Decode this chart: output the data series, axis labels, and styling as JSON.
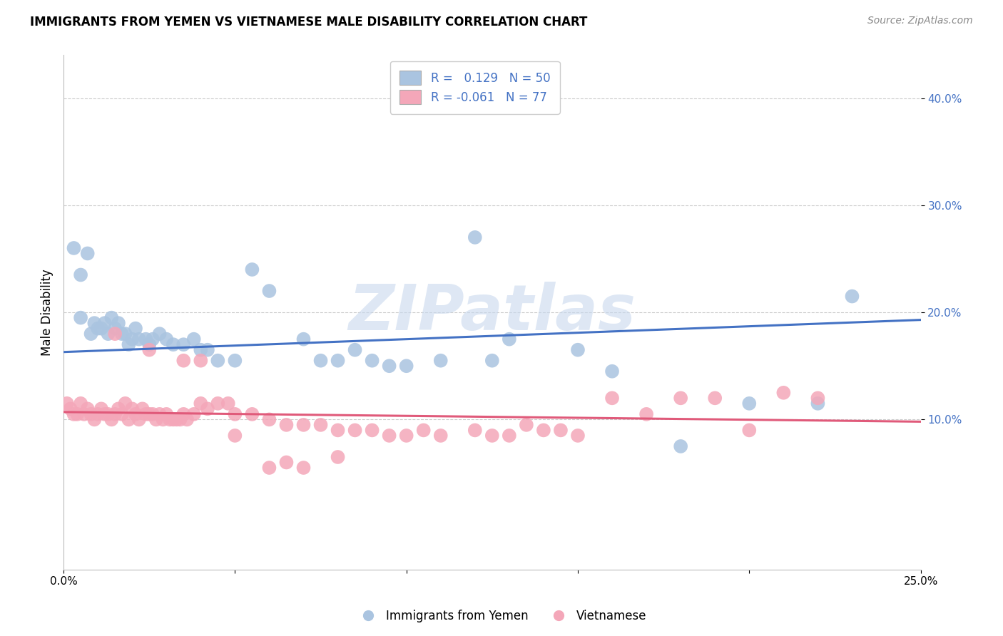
{
  "title": "IMMIGRANTS FROM YEMEN VS VIETNAMESE MALE DISABILITY CORRELATION CHART",
  "source": "Source: ZipAtlas.com",
  "ylabel": "Male Disability",
  "watermark": "ZIPatlas",
  "xlim": [
    0.0,
    0.25
  ],
  "ylim": [
    -0.04,
    0.44
  ],
  "ytick_vals": [
    0.1,
    0.2,
    0.3,
    0.4
  ],
  "ytick_labels": [
    "10.0%",
    "20.0%",
    "30.0%",
    "40.0%"
  ],
  "xtick_vals": [
    0.0,
    0.05,
    0.1,
    0.15,
    0.2,
    0.25
  ],
  "xtick_labels": [
    "0.0%",
    "",
    "",
    "",
    "",
    "25.0%"
  ],
  "blue_color": "#aac4e0",
  "pink_color": "#f4a7b9",
  "blue_line_color": "#4472c4",
  "pink_line_color": "#e05a7a",
  "R_blue": 0.129,
  "N_blue": 50,
  "R_pink": -0.061,
  "N_pink": 77,
  "blue_line_start_y": 0.163,
  "blue_line_end_y": 0.193,
  "pink_line_start_y": 0.107,
  "pink_line_end_y": 0.098,
  "blue_scatter_x": [
    0.005,
    0.008,
    0.01,
    0.012,
    0.013,
    0.015,
    0.016,
    0.017,
    0.018,
    0.019,
    0.02,
    0.021,
    0.022,
    0.024,
    0.025,
    0.026,
    0.028,
    0.03,
    0.032,
    0.035,
    0.038,
    0.04,
    0.042,
    0.045,
    0.05,
    0.055,
    0.06,
    0.07,
    0.075,
    0.08,
    0.085,
    0.09,
    0.095,
    0.1,
    0.11,
    0.12,
    0.125,
    0.13,
    0.15,
    0.16,
    0.18,
    0.2,
    0.22,
    0.23,
    0.005,
    0.007,
    0.009,
    0.011,
    0.014,
    0.003
  ],
  "blue_scatter_y": [
    0.195,
    0.18,
    0.185,
    0.19,
    0.18,
    0.185,
    0.19,
    0.18,
    0.18,
    0.17,
    0.175,
    0.185,
    0.175,
    0.175,
    0.17,
    0.175,
    0.18,
    0.175,
    0.17,
    0.17,
    0.175,
    0.165,
    0.165,
    0.155,
    0.155,
    0.24,
    0.22,
    0.175,
    0.155,
    0.155,
    0.165,
    0.155,
    0.15,
    0.15,
    0.155,
    0.27,
    0.155,
    0.175,
    0.165,
    0.145,
    0.075,
    0.115,
    0.115,
    0.215,
    0.235,
    0.255,
    0.19,
    0.185,
    0.195,
    0.26
  ],
  "pink_scatter_x": [
    0.002,
    0.004,
    0.005,
    0.006,
    0.007,
    0.008,
    0.009,
    0.01,
    0.011,
    0.012,
    0.013,
    0.014,
    0.015,
    0.016,
    0.017,
    0.018,
    0.019,
    0.02,
    0.021,
    0.022,
    0.023,
    0.024,
    0.025,
    0.026,
    0.027,
    0.028,
    0.029,
    0.03,
    0.031,
    0.032,
    0.033,
    0.034,
    0.035,
    0.036,
    0.038,
    0.04,
    0.042,
    0.045,
    0.048,
    0.05,
    0.055,
    0.06,
    0.065,
    0.07,
    0.075,
    0.08,
    0.085,
    0.09,
    0.095,
    0.1,
    0.105,
    0.11,
    0.12,
    0.125,
    0.13,
    0.135,
    0.14,
    0.145,
    0.15,
    0.16,
    0.17,
    0.18,
    0.19,
    0.2,
    0.21,
    0.22,
    0.001,
    0.003,
    0.015,
    0.025,
    0.035,
    0.04,
    0.05,
    0.06,
    0.07,
    0.065,
    0.08
  ],
  "pink_scatter_y": [
    0.11,
    0.105,
    0.115,
    0.105,
    0.11,
    0.105,
    0.1,
    0.105,
    0.11,
    0.105,
    0.105,
    0.1,
    0.105,
    0.11,
    0.105,
    0.115,
    0.1,
    0.11,
    0.105,
    0.1,
    0.11,
    0.105,
    0.105,
    0.105,
    0.1,
    0.105,
    0.1,
    0.105,
    0.1,
    0.1,
    0.1,
    0.1,
    0.105,
    0.1,
    0.105,
    0.115,
    0.11,
    0.115,
    0.115,
    0.105,
    0.105,
    0.1,
    0.095,
    0.095,
    0.095,
    0.09,
    0.09,
    0.09,
    0.085,
    0.085,
    0.09,
    0.085,
    0.09,
    0.085,
    0.085,
    0.095,
    0.09,
    0.09,
    0.085,
    0.12,
    0.105,
    0.12,
    0.12,
    0.09,
    0.125,
    0.12,
    0.115,
    0.105,
    0.18,
    0.165,
    0.155,
    0.155,
    0.085,
    0.055,
    0.055,
    0.06,
    0.065
  ]
}
